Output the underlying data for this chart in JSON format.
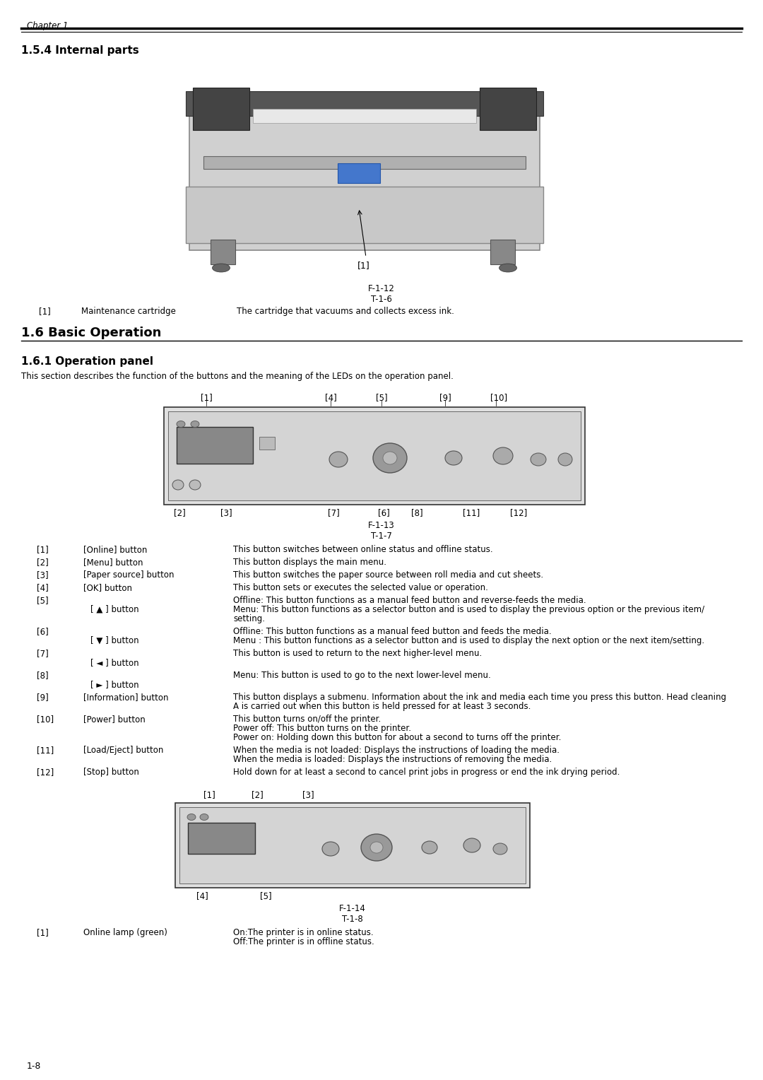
{
  "page_bg": "#ffffff",
  "header_text": "Chapter 1",
  "section_154_title": "1.5.4 Internal parts",
  "figure_112_label": "F-1-12",
  "figure_112_sub": "T-1-6",
  "table_154": [
    [
      "[1]",
      "Maintenance cartridge",
      "The cartridge that vacuums and collects excess ink."
    ]
  ],
  "section_16_title": "1.6 Basic Operation",
  "section_161_title": "1.6.1 Operation panel",
  "section_161_intro": "This section describes the function of the buttons and the meaning of the LEDs on the operation panel.",
  "figure_113_label": "F-1-13",
  "figure_113_sub": "T-1-7",
  "figure_114_label": "F-1-14",
  "figure_114_sub": "T-1-8",
  "table_161_rows": [
    {
      "num": "[1]",
      "name": "[Online] button",
      "desc": [
        "This button switches between online status and offline status."
      ],
      "name2": null
    },
    {
      "num": "[2]",
      "name": "[Menu] button",
      "desc": [
        "This button displays the main menu."
      ],
      "name2": null
    },
    {
      "num": "[3]",
      "name": "[Paper source] button",
      "desc": [
        "This button switches the paper source between roll media and cut sheets."
      ],
      "name2": null
    },
    {
      "num": "[4]",
      "name": "[OK] button",
      "desc": [
        "This button sets or executes the selected value or operation."
      ],
      "name2": null
    },
    {
      "num": "[5]",
      "name": null,
      "name2": "[ ▲ ] button",
      "desc": [
        "Offline: This button functions as a manual feed button and reverse-feeds the media.",
        "Menu: This button functions as a selector button and is used to display the previous option or the previous item/",
        "setting."
      ]
    },
    {
      "num": "[6]",
      "name": null,
      "name2": "[ ▼ ] button",
      "desc": [
        "Offline: This button functions as a manual feed button and feeds the media.",
        "Menu : This button functions as a selector button and is used to display the next option or the next item/setting."
      ]
    },
    {
      "num": "[7]",
      "name": null,
      "name2": "[ ◄ ] button",
      "desc": [
        "This button is used to return to the next higher-level menu."
      ]
    },
    {
      "num": "[8]",
      "name": null,
      "name2": "[ ► ] button",
      "desc": [
        "Menu: This button is used to go to the next lower-level menu."
      ]
    },
    {
      "num": "[9]",
      "name": "[Information] button",
      "desc": [
        "This button displays a submenu. Information about the ink and media each time you press this button. Head cleaning",
        "A is carried out when this button is held pressed for at least 3 seconds."
      ],
      "name2": null
    },
    {
      "num": "[10]",
      "name": "[Power] button",
      "desc": [
        "This button turns on/off the printer.",
        "Power off: This button turns on the printer.",
        "Power on: Holding down this button for about a second to turns off the printer."
      ],
      "name2": null
    },
    {
      "num": "[11]",
      "name": "[Load/Eject] button",
      "desc": [
        "When the media is not loaded: Displays the instructions of loading the media.",
        "When the media is loaded: Displays the instructions of removing the media."
      ],
      "name2": null
    },
    {
      "num": "[12]",
      "name": "[Stop] button",
      "desc": [
        "Hold down for at least a second to cancel print jobs in progress or end the ink drying period."
      ],
      "name2": null
    }
  ],
  "table_161_second": [
    [
      "[1]",
      "Online lamp (green)",
      "On:The printer is in online status.",
      "Off:The printer is in offline status."
    ]
  ],
  "page_number": "1-8"
}
